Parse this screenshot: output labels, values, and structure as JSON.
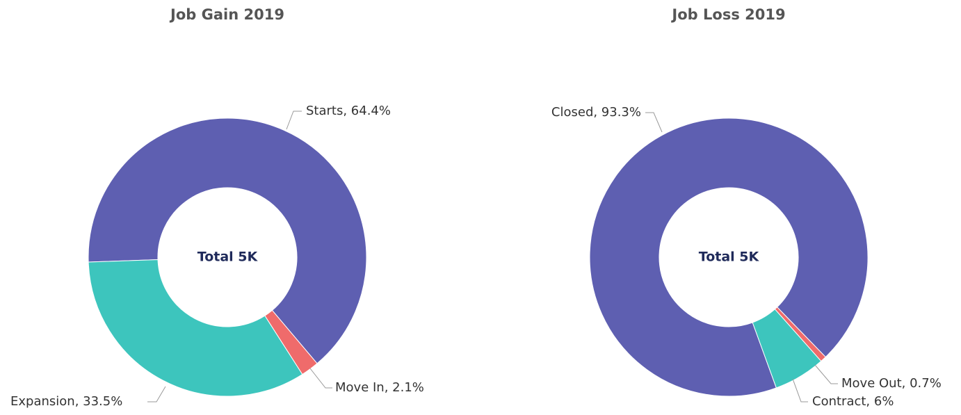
{
  "chart_data": [
    {
      "type": "pie",
      "title": "Job Gain 2019",
      "center_label": "Total 5K",
      "categories": [
        "Starts",
        "Move In",
        "Expansion"
      ],
      "values": [
        64.4,
        2.1,
        33.5
      ],
      "value_labels": [
        "Starts, 64.4%",
        "Move In, 2.1%",
        "Expansion, 33.5%"
      ],
      "colors": [
        "#5e5fb1",
        "#ef6b6b",
        "#3dc5bd"
      ]
    },
    {
      "type": "pie",
      "title": "Job Loss 2019",
      "center_label": "Total 5K",
      "categories": [
        "Closed",
        "Move Out",
        "Contract"
      ],
      "values": [
        93.3,
        0.7,
        6
      ],
      "value_labels": [
        "Closed, 93.3%",
        "Move Out, 0.7%",
        "Contract, 6%"
      ],
      "colors": [
        "#5e5fb1",
        "#ef6b6b",
        "#3dc5bd"
      ]
    }
  ]
}
